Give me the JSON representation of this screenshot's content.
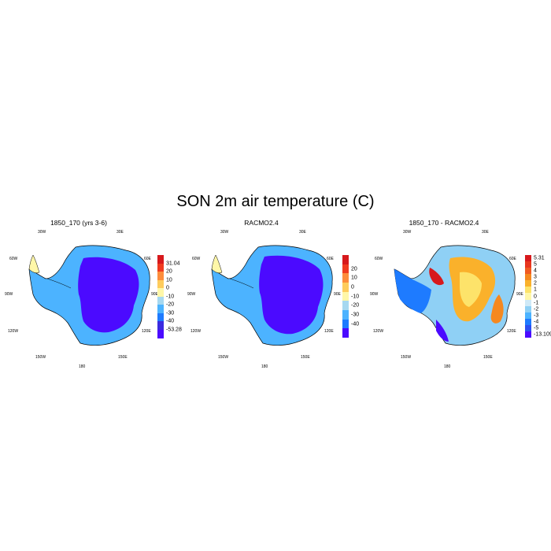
{
  "figure": {
    "title": "SON 2m air temperature (C)"
  },
  "panels": [
    {
      "title": "1850_170 (yrs 3-6)",
      "lon_labels": [
        "30W",
        "30E",
        "60W",
        "60E",
        "90W",
        "90E",
        "120W",
        "120E",
        "150W",
        "150E",
        "180"
      ],
      "colorbar": {
        "labels": [
          "31.04",
          "20",
          "10",
          "0",
          "-10",
          "-20",
          "-30",
          "-40",
          "-53.28"
        ],
        "colors": [
          "#d7191c",
          "#f03b20",
          "#fd8d3c",
          "#fecc5c",
          "#fff7a8",
          "#a6d8f0",
          "#4cb3ff",
          "#1e7bff",
          "#3a2be0",
          "#4b0aff"
        ]
      }
    },
    {
      "title": "RACMO2.4",
      "lon_labels": [
        "30W",
        "30E",
        "60W",
        "60E",
        "90W",
        "90E",
        "120W",
        "120E",
        "150W",
        "150E",
        "180"
      ],
      "colorbar": {
        "labels": [
          "20",
          "10",
          "0",
          "-10",
          "-20",
          "-30",
          "-40"
        ],
        "colors": [
          "#d7191c",
          "#f03b20",
          "#fd8d3c",
          "#fecc5c",
          "#fff7a8",
          "#a6d8f0",
          "#4cb3ff",
          "#1e7bff",
          "#4b0aff"
        ]
      }
    },
    {
      "title": "1850_170 - RACMO2.4",
      "lon_labels": [
        "30W",
        "30E",
        "60W",
        "60E",
        "90W",
        "90E",
        "120W",
        "120E",
        "150W",
        "150E",
        "180"
      ],
      "colorbar": {
        "labels": [
          "5.31",
          "5",
          "4",
          "3",
          "2",
          "1",
          "0",
          "-1",
          "-2",
          "-3",
          "-4",
          "-5",
          "-13.109"
        ],
        "colors": [
          "#d7191c",
          "#e8361f",
          "#f05a22",
          "#f5881f",
          "#fab12b",
          "#fde36a",
          "#fff7a8",
          "#cfe9f7",
          "#8fd0f5",
          "#4cb3ff",
          "#1e7bff",
          "#2c4ff0",
          "#4b0aff"
        ]
      }
    }
  ]
}
